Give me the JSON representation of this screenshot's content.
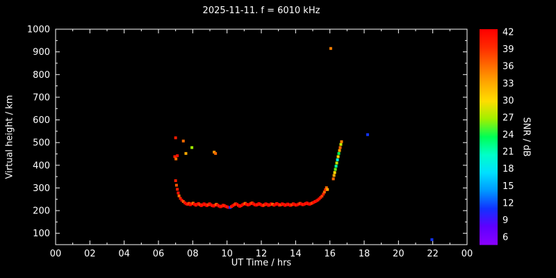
{
  "chart_data": {
    "type": "scatter",
    "title": "2025-11-11. f = 6010 kHz",
    "xlabel": "UT Time / hrs",
    "ylabel": "Virtual height / km",
    "colorbar_label": "SNR / dB",
    "xlim": [
      0,
      24
    ],
    "ylim": [
      50,
      1000
    ],
    "x_ticks": {
      "values": [
        0,
        2,
        4,
        6,
        8,
        10,
        12,
        14,
        16,
        18,
        20,
        22,
        24
      ],
      "labels": [
        "00",
        "02",
        "04",
        "06",
        "08",
        "10",
        "12",
        "14",
        "16",
        "18",
        "20",
        "22",
        "00"
      ],
      "minor_step": 1
    },
    "y_ticks": {
      "values": [
        100,
        200,
        300,
        400,
        500,
        600,
        700,
        800,
        900,
        1000
      ],
      "labels": [
        "100",
        "200",
        "300",
        "400",
        "500",
        "600",
        "700",
        "800",
        "900",
        "1000"
      ],
      "minor_step": 50
    },
    "colorbar": {
      "min": 6,
      "max": 42,
      "ticks": [
        42,
        39,
        36,
        33,
        30,
        27,
        24,
        21,
        18,
        15,
        12,
        9,
        6
      ],
      "stops": [
        [
          6,
          "#8800ff"
        ],
        [
          9,
          "#5e00ff"
        ],
        [
          12,
          "#1133ff"
        ],
        [
          15,
          "#0099ff"
        ],
        [
          18,
          "#00e0ff"
        ],
        [
          21,
          "#00ffc8"
        ],
        [
          24,
          "#00ff55"
        ],
        [
          27,
          "#a0f000"
        ],
        [
          30,
          "#ffdd00"
        ],
        [
          33,
          "#ffaa00"
        ],
        [
          36,
          "#ff6a00"
        ],
        [
          39,
          "#ff2a00"
        ],
        [
          42,
          "#ff0000"
        ]
      ]
    },
    "background": "#000000",
    "foreground": "#ffffff",
    "grid": false,
    "point_size": 4,
    "points": [
      [
        6.95,
        438,
        40
      ],
      [
        7.02,
        428,
        36
      ],
      [
        7.1,
        442,
        41
      ],
      [
        7.0,
        521,
        40
      ],
      [
        7.45,
        507,
        36
      ],
      [
        7.6,
        452,
        33
      ],
      [
        7.95,
        478,
        27
      ],
      [
        9.25,
        458,
        34
      ],
      [
        9.33,
        452,
        36
      ],
      [
        7.0,
        332,
        40
      ],
      [
        7.05,
        312,
        37
      ],
      [
        7.1,
        294,
        40
      ],
      [
        7.15,
        278,
        41
      ],
      [
        7.2,
        265,
        36
      ],
      [
        7.28,
        254,
        40
      ],
      [
        7.36,
        246,
        41
      ],
      [
        7.45,
        240,
        37
      ],
      [
        7.54,
        234,
        40
      ],
      [
        7.62,
        230,
        42
      ],
      [
        7.7,
        228,
        40
      ],
      [
        7.78,
        232,
        38
      ],
      [
        7.86,
        226,
        42
      ],
      [
        7.94,
        230,
        40
      ],
      [
        8.02,
        233,
        36
      ],
      [
        8.1,
        228,
        42
      ],
      [
        8.18,
        224,
        40
      ],
      [
        8.26,
        228,
        42
      ],
      [
        8.34,
        231,
        40
      ],
      [
        8.42,
        226,
        38
      ],
      [
        8.5,
        222,
        42
      ],
      [
        8.58,
        226,
        40
      ],
      [
        8.66,
        230,
        42
      ],
      [
        8.74,
        226,
        40
      ],
      [
        8.82,
        222,
        42
      ],
      [
        8.9,
        226,
        38
      ],
      [
        8.98,
        230,
        40
      ],
      [
        9.06,
        226,
        42
      ],
      [
        9.14,
        222,
        40
      ],
      [
        9.22,
        220,
        42
      ],
      [
        9.3,
        224,
        40
      ],
      [
        9.38,
        228,
        36
      ],
      [
        9.46,
        224,
        42
      ],
      [
        9.54,
        220,
        40
      ],
      [
        9.62,
        217,
        42
      ],
      [
        9.7,
        220,
        40
      ],
      [
        9.78,
        224,
        41
      ],
      [
        9.86,
        221,
        39
      ],
      [
        9.94,
        218,
        42
      ],
      [
        10.02,
        216,
        40
      ],
      [
        10.1,
        214,
        42
      ],
      [
        10.18,
        214,
        12
      ],
      [
        10.26,
        218,
        40
      ],
      [
        10.34,
        222,
        42
      ],
      [
        10.42,
        226,
        40
      ],
      [
        10.5,
        230,
        38
      ],
      [
        10.58,
        228,
        42
      ],
      [
        10.66,
        223,
        40
      ],
      [
        10.74,
        219,
        42
      ],
      [
        10.82,
        222,
        40
      ],
      [
        10.9,
        226,
        42
      ],
      [
        10.98,
        229,
        40
      ],
      [
        11.06,
        232,
        36
      ],
      [
        11.14,
        228,
        42
      ],
      [
        11.22,
        225,
        40
      ],
      [
        11.3,
        227,
        42
      ],
      [
        11.38,
        231,
        40
      ],
      [
        11.46,
        234,
        38
      ],
      [
        11.54,
        230,
        42
      ],
      [
        11.62,
        226,
        40
      ],
      [
        11.7,
        224,
        42
      ],
      [
        11.78,
        227,
        40
      ],
      [
        11.86,
        231,
        42
      ],
      [
        11.94,
        228,
        40
      ],
      [
        12.02,
        224,
        42
      ],
      [
        12.1,
        222,
        40
      ],
      [
        12.18,
        226,
        38
      ],
      [
        12.26,
        230,
        42
      ],
      [
        12.34,
        227,
        40
      ],
      [
        12.42,
        223,
        42
      ],
      [
        12.5,
        226,
        40
      ],
      [
        12.58,
        230,
        42
      ],
      [
        12.66,
        228,
        36
      ],
      [
        12.74,
        224,
        40
      ],
      [
        12.82,
        227,
        42
      ],
      [
        12.9,
        231,
        40
      ],
      [
        12.98,
        228,
        42
      ],
      [
        13.06,
        224,
        40
      ],
      [
        13.14,
        226,
        38
      ],
      [
        13.22,
        230,
        42
      ],
      [
        13.3,
        227,
        40
      ],
      [
        13.38,
        223,
        42
      ],
      [
        13.46,
        226,
        40
      ],
      [
        13.54,
        229,
        42
      ],
      [
        13.62,
        226,
        40
      ],
      [
        13.7,
        223,
        42
      ],
      [
        13.78,
        226,
        38
      ],
      [
        13.86,
        230,
        40
      ],
      [
        13.94,
        227,
        42
      ],
      [
        14.02,
        224,
        40
      ],
      [
        14.1,
        226,
        42
      ],
      [
        14.18,
        229,
        40
      ],
      [
        14.26,
        232,
        38
      ],
      [
        14.34,
        229,
        42
      ],
      [
        14.42,
        226,
        40
      ],
      [
        14.5,
        228,
        42
      ],
      [
        14.58,
        231,
        40
      ],
      [
        14.66,
        234,
        42
      ],
      [
        14.74,
        230,
        40
      ],
      [
        14.82,
        228,
        42
      ],
      [
        14.9,
        231,
        40
      ],
      [
        14.98,
        234,
        38
      ],
      [
        15.06,
        237,
        42
      ],
      [
        15.14,
        240,
        40
      ],
      [
        15.22,
        243,
        42
      ],
      [
        15.3,
        247,
        40
      ],
      [
        15.38,
        252,
        41
      ],
      [
        15.46,
        258,
        40
      ],
      [
        15.54,
        264,
        38
      ],
      [
        15.62,
        273,
        40
      ],
      [
        15.68,
        282,
        36
      ],
      [
        15.74,
        292,
        39
      ],
      [
        15.8,
        301,
        36
      ],
      [
        15.86,
        293,
        33
      ],
      [
        16.05,
        915,
        35
      ],
      [
        16.2,
        340,
        36
      ],
      [
        16.24,
        355,
        33
      ],
      [
        16.28,
        368,
        30
      ],
      [
        16.32,
        382,
        26
      ],
      [
        16.36,
        396,
        22
      ],
      [
        16.4,
        410,
        28
      ],
      [
        16.44,
        424,
        20
      ],
      [
        16.48,
        438,
        30
      ],
      [
        16.52,
        452,
        24
      ],
      [
        16.56,
        465,
        33
      ],
      [
        16.6,
        478,
        36
      ],
      [
        16.64,
        492,
        28
      ],
      [
        16.68,
        504,
        35
      ],
      [
        18.2,
        535,
        12
      ],
      [
        21.95,
        72,
        12
      ]
    ]
  }
}
